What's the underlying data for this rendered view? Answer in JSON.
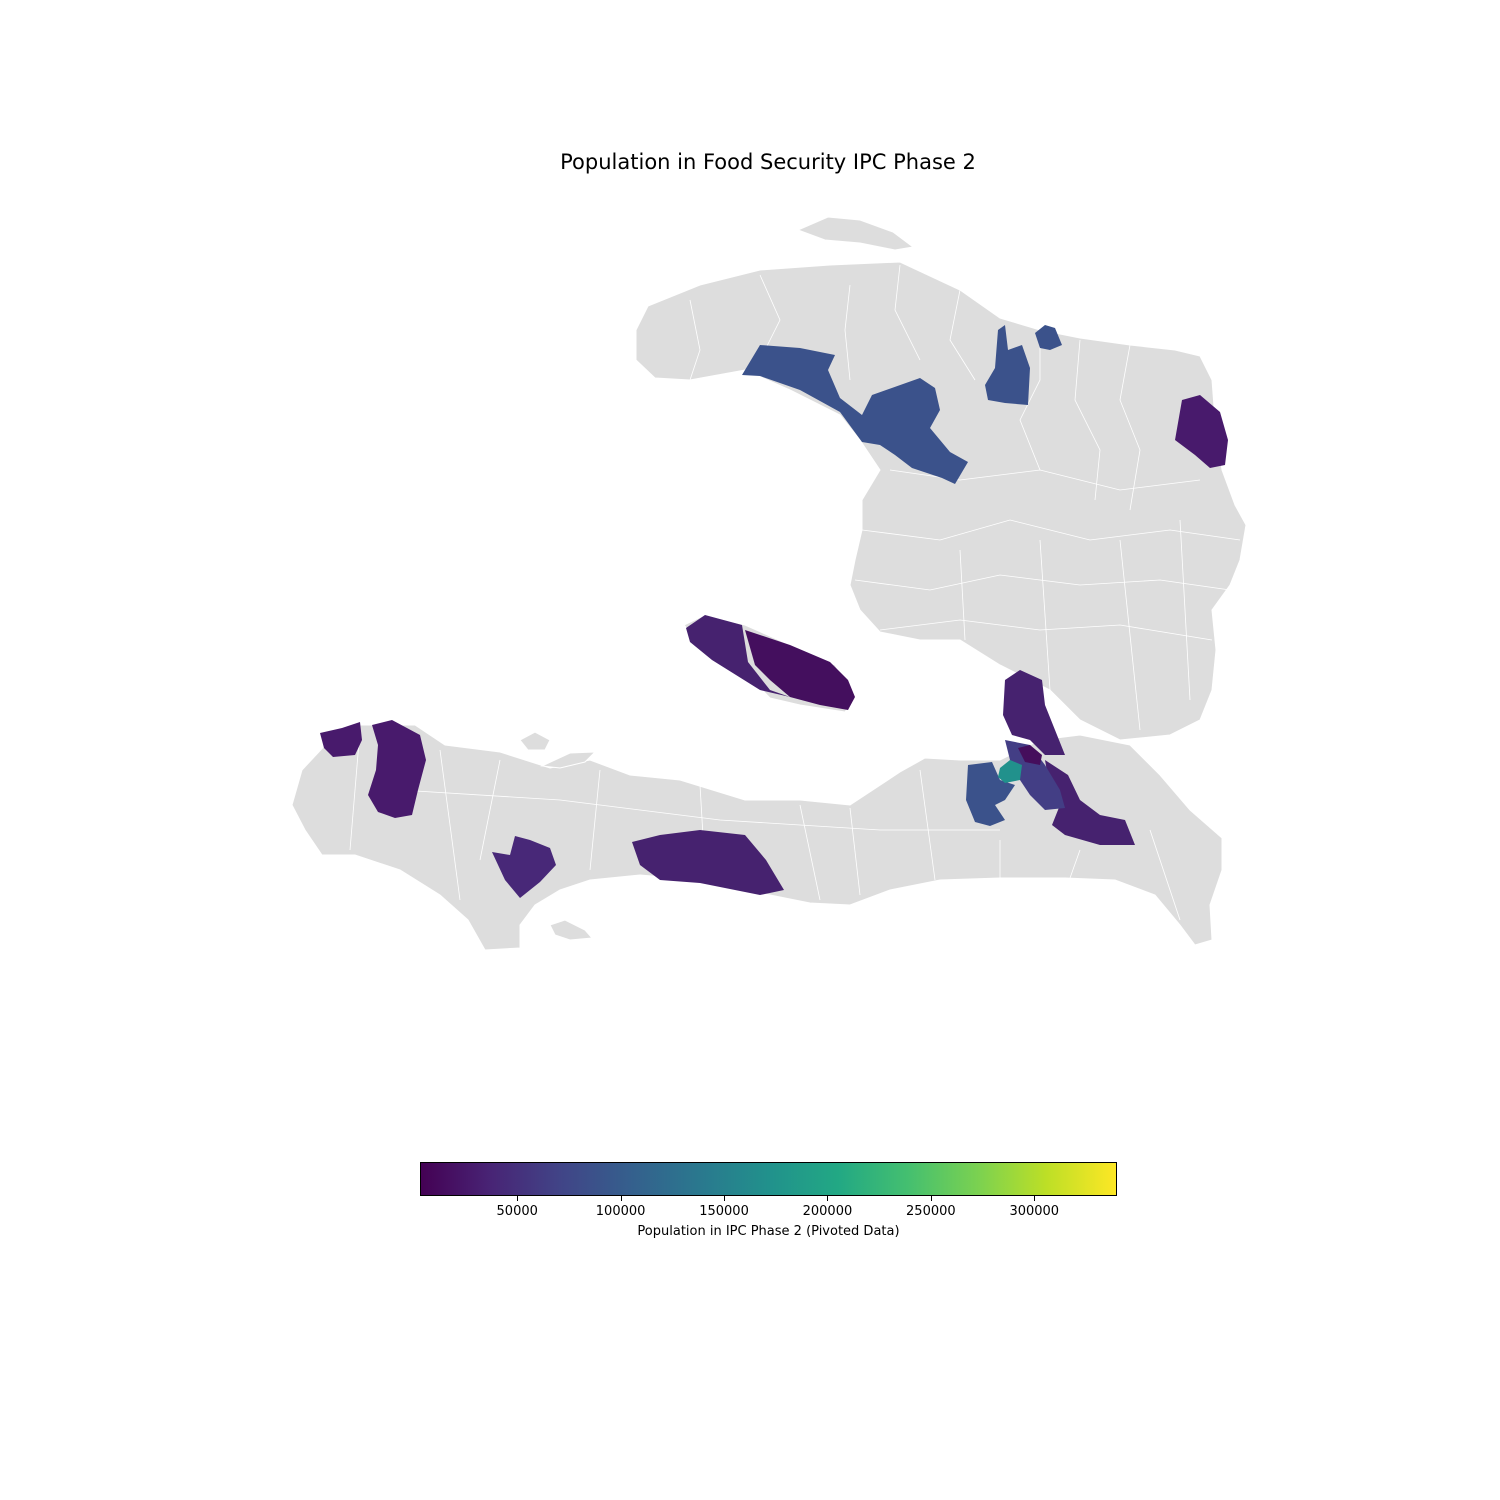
{
  "title": "Population in Food Security IPC Phase 2",
  "map": {
    "country": "Haiti",
    "no_data_color": "#dddddd",
    "boundary_color": "#ffffff",
    "highlighted_regions": [
      {
        "region": "Northwest band",
        "value": 80000,
        "color": "#3b528b"
      },
      {
        "region": "North-central small",
        "value": 80000,
        "color": "#3b528b"
      },
      {
        "region": "North small east",
        "value": 80000,
        "color": "#3b528b"
      },
      {
        "region": "Northeast",
        "value": 30000,
        "color": "#481a6c"
      },
      {
        "region": "Gonave west",
        "value": 35000,
        "color": "#46226f"
      },
      {
        "region": "Gonave east",
        "value": 15000,
        "color": "#440f5e"
      },
      {
        "region": "Grand'Anse small",
        "value": 30000,
        "color": "#481a6c"
      },
      {
        "region": "Grand'Anse",
        "value": 30000,
        "color": "#481a6c"
      },
      {
        "region": "South",
        "value": 40000,
        "color": "#482878"
      },
      {
        "region": "South coast",
        "value": 35000,
        "color": "#46226f"
      },
      {
        "region": "West north arm",
        "value": 35000,
        "color": "#46226f"
      },
      {
        "region": "West southeast arm",
        "value": 35000,
        "color": "#46226f"
      },
      {
        "region": "West central",
        "value": 80000,
        "color": "#3b528b"
      },
      {
        "region": "West inner",
        "value": 60000,
        "color": "#433e85"
      },
      {
        "region": "West small",
        "value": 20000,
        "color": "#450e5c"
      },
      {
        "region": "Port-au-Prince core",
        "value": 175000,
        "color": "#21918c"
      }
    ]
  },
  "colorbar": {
    "label": "Population in IPC Phase 2 (Pivoted Data)",
    "min": 3000,
    "max": 340000,
    "colormap": "viridis",
    "ticks": [
      50000,
      100000,
      150000,
      200000,
      250000,
      300000
    ],
    "tick_labels": [
      "50000",
      "100000",
      "150000",
      "200000",
      "250000",
      "300000"
    ]
  }
}
